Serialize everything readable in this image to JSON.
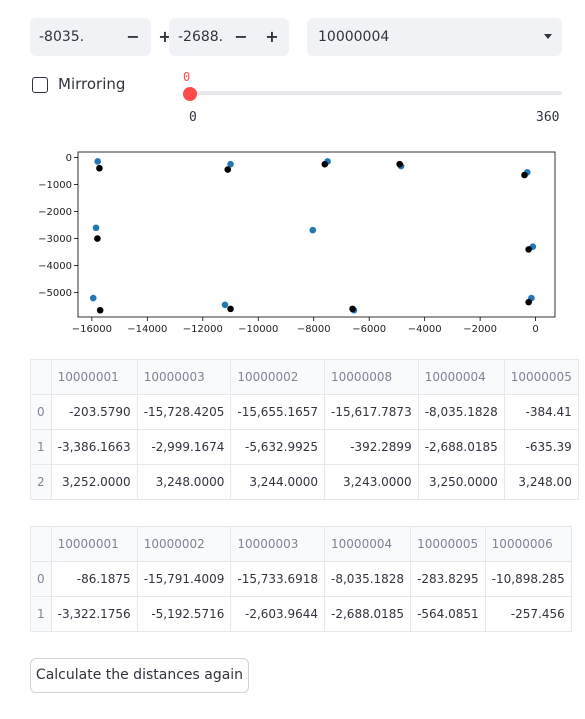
{
  "inputs": {
    "x_value": "-8035.",
    "y_value": "-2688.",
    "minus_label": "−",
    "plus_label": "+",
    "selected_id": "10000004"
  },
  "mirroring": {
    "label": "Mirroring",
    "checked": false
  },
  "slider": {
    "value": "0",
    "min": "0",
    "max": "360"
  },
  "chart_data": {
    "type": "scatter",
    "xlim": [
      -16500,
      700
    ],
    "ylim": [
      -5900,
      200
    ],
    "xticks": [
      "−16000",
      "−14000",
      "−12000",
      "−10000",
      "−8000",
      "−6000",
      "−4000",
      "−2000",
      "0"
    ],
    "xtick_values": [
      -16000,
      -14000,
      -12000,
      -10000,
      -8000,
      -6000,
      -4000,
      -2000,
      0
    ],
    "yticks": [
      "0",
      "−1000",
      "−2000",
      "−3000",
      "−4000",
      "−5000"
    ],
    "ytick_values": [
      0,
      -1000,
      -2000,
      -3000,
      -4000,
      -5000
    ],
    "series": [
      {
        "color": "#1f77b4",
        "points": [
          [
            -15790,
            -150
          ],
          [
            -11000,
            -250
          ],
          [
            -7500,
            -150
          ],
          [
            -4850,
            -320
          ],
          [
            -300,
            -550
          ],
          [
            -15850,
            -2600
          ],
          [
            -8035,
            -2688
          ],
          [
            -100,
            -3300
          ],
          [
            -15950,
            -5200
          ],
          [
            -11200,
            -5450
          ],
          [
            -6550,
            -5650
          ],
          [
            -150,
            -5200
          ]
        ]
      },
      {
        "color": "#000000",
        "points": [
          [
            -15728,
            -400
          ],
          [
            -11100,
            -450
          ],
          [
            -7600,
            -250
          ],
          [
            -4900,
            -250
          ],
          [
            -400,
            -650
          ],
          [
            -15800,
            -3000
          ],
          [
            -250,
            -3400
          ],
          [
            -15700,
            -5650
          ],
          [
            -11000,
            -5600
          ],
          [
            -6600,
            -5600
          ],
          [
            -250,
            -5350
          ]
        ]
      }
    ]
  },
  "table1": {
    "columns": [
      "10000001",
      "10000003",
      "10000002",
      "10000008",
      "10000004",
      "10000005"
    ],
    "rows": [
      {
        "index": "0",
        "cells": [
          "-203.5790",
          "-15,728.4205",
          "-15,655.1657",
          "-15,617.7873",
          "-8,035.1828",
          "-384.41"
        ]
      },
      {
        "index": "1",
        "cells": [
          "-3,386.1663",
          "-2,999.1674",
          "-5,632.9925",
          "-392.2899",
          "-2,688.0185",
          "-635.39"
        ]
      },
      {
        "index": "2",
        "cells": [
          "3,252.0000",
          "3,248.0000",
          "3,244.0000",
          "3,243.0000",
          "3,250.0000",
          "3,248.00"
        ]
      }
    ]
  },
  "table2": {
    "columns": [
      "10000001",
      "10000002",
      "10000003",
      "10000004",
      "10000005",
      "10000006"
    ],
    "rows": [
      {
        "index": "0",
        "cells": [
          "-86.1875",
          "-15,791.4009",
          "-15,733.6918",
          "-8,035.1828",
          "-283.8295",
          "-10,898.285"
        ]
      },
      {
        "index": "1",
        "cells": [
          "-3,322.1756",
          "-5,192.5716",
          "-2,603.9644",
          "-2,688.0185",
          "-564.0851",
          "-257.456"
        ]
      }
    ]
  },
  "calculate_button": "Calculate the distances again"
}
